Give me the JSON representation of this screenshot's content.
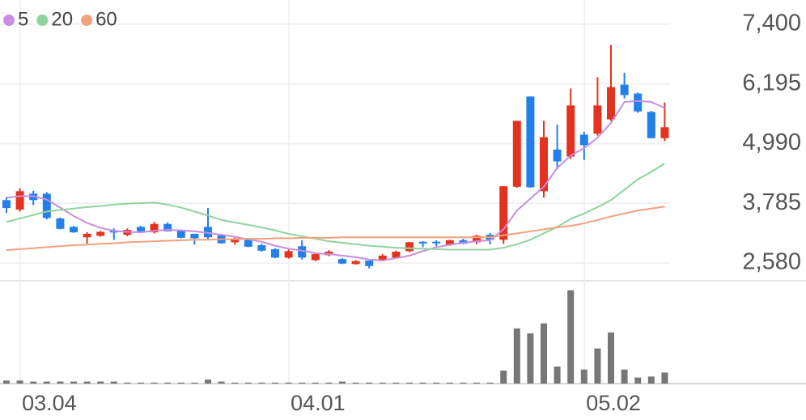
{
  "chart_data": [
    {
      "type": "candlestick",
      "categories": [
        null,
        "03.04",
        null,
        null,
        null,
        null,
        null,
        null,
        null,
        null,
        null,
        null,
        null,
        null,
        null,
        null,
        null,
        null,
        null,
        null,
        null,
        "04.01",
        null,
        null,
        null,
        null,
        null,
        null,
        null,
        null,
        null,
        null,
        null,
        null,
        null,
        null,
        null,
        null,
        null,
        null,
        null,
        null,
        null,
        "05.02",
        null,
        null,
        null,
        null,
        null,
        null
      ],
      "open": [
        3850,
        3660,
        3980,
        3980,
        3480,
        3310,
        3100,
        3130,
        3230,
        3150,
        3310,
        3200,
        3370,
        3230,
        3170,
        3310,
        3140,
        3000,
        3050,
        2940,
        2860,
        2690,
        2920,
        2640,
        2740,
        2660,
        2560,
        2630,
        2640,
        2690,
        2820,
        3010,
        3010,
        2940,
        3040,
        3000,
        3150,
        3050,
        4120,
        5940,
        4030,
        4870,
        4730,
        5170,
        5190,
        5480,
        6180,
        6000,
        5630,
        5100
      ],
      "high": [
        3910,
        4090,
        4040,
        4010,
        3500,
        3330,
        3200,
        3230,
        3280,
        3280,
        3330,
        3410,
        3400,
        3250,
        3170,
        3690,
        3170,
        3090,
        3080,
        2970,
        2880,
        2850,
        3040,
        2790,
        2840,
        2680,
        2640,
        2630,
        2760,
        2830,
        3010,
        3020,
        3040,
        3050,
        3070,
        3150,
        3190,
        4130,
        5450,
        5940,
        5450,
        5370,
        6100,
        5230,
        6330,
        6980,
        6420,
        6020,
        5650,
        5820
      ],
      "low": [
        3590,
        3620,
        3750,
        3460,
        3260,
        3190,
        2970,
        3110,
        3050,
        3120,
        3200,
        3180,
        3220,
        3080,
        2950,
        3040,
        2970,
        2950,
        2900,
        2810,
        2680,
        2670,
        2650,
        2620,
        2720,
        2560,
        2550,
        2470,
        2620,
        2680,
        2800,
        2900,
        2920,
        2930,
        2960,
        2960,
        2960,
        2970,
        4100,
        4100,
        3900,
        4470,
        4680,
        4660,
        5150,
        5450,
        5900,
        5610,
        5100,
        5040
      ],
      "close": [
        3690,
        4030,
        3850,
        3490,
        3270,
        3200,
        3170,
        3210,
        3200,
        3250,
        3220,
        3370,
        3220,
        3090,
        3080,
        3100,
        2980,
        3070,
        2910,
        2830,
        2690,
        2820,
        2690,
        2760,
        2810,
        2570,
        2620,
        2520,
        2730,
        2810,
        3000,
        2980,
        2980,
        3040,
        2970,
        3130,
        3050,
        4130,
        5450,
        4110,
        5120,
        4630,
        5760,
        4960,
        5760,
        6130,
        5970,
        5640,
        5100,
        5320
      ],
      "up_color": "#e5321f",
      "down_color": "#2280e8",
      "series": [
        {
          "name": "5",
          "color": "#c98de3",
          "values": [
            3900,
            3930,
            3930,
            3860,
            3700,
            3530,
            3390,
            3290,
            3230,
            3210,
            3200,
            3230,
            3250,
            3240,
            3220,
            3190,
            3150,
            3110,
            3060,
            3010,
            2930,
            2870,
            2830,
            2780,
            2760,
            2730,
            2700,
            2650,
            2630,
            2680,
            2730,
            2820,
            2900,
            2950,
            2990,
            3020,
            3040,
            3260,
            3640,
            3880,
            4120,
            4500,
            4750,
            4900,
            5110,
            5410,
            5830,
            5850,
            5830,
            5710
          ]
        },
        {
          "name": "20",
          "color": "#8ed49f",
          "values": [
            3410,
            3480,
            3550,
            3620,
            3650,
            3680,
            3710,
            3730,
            3760,
            3780,
            3790,
            3800,
            3760,
            3700,
            3620,
            3540,
            3450,
            3400,
            3350,
            3300,
            3240,
            3170,
            3120,
            3070,
            3020,
            2990,
            2960,
            2930,
            2910,
            2890,
            2880,
            2870,
            2860,
            2850,
            2850,
            2850,
            2850,
            2890,
            2960,
            3050,
            3180,
            3310,
            3470,
            3580,
            3710,
            3850,
            4060,
            4270,
            4420,
            4590
          ]
        },
        {
          "name": "60",
          "color": "#f3a07c",
          "values": [
            2840,
            2860,
            2880,
            2900,
            2920,
            2940,
            2950,
            2970,
            2980,
            3000,
            3010,
            3020,
            3030,
            3040,
            3050,
            3050,
            3060,
            3060,
            3070,
            3070,
            3080,
            3080,
            3090,
            3090,
            3090,
            3100,
            3100,
            3100,
            3100,
            3100,
            3100,
            3100,
            3100,
            3100,
            3100,
            3100,
            3100,
            3140,
            3180,
            3220,
            3260,
            3300,
            3330,
            3380,
            3450,
            3520,
            3580,
            3640,
            3680,
            3720
          ]
        }
      ],
      "ylim": [
        2222,
        7888
      ],
      "yticks": [
        {
          "value": 7400,
          "label": "7,400"
        },
        {
          "value": 6195,
          "label": "6,195"
        },
        {
          "value": 4990,
          "label": "4,990"
        },
        {
          "value": 3785,
          "label": "3,785"
        },
        {
          "value": 2580,
          "label": "2,580"
        }
      ],
      "grid": true
    },
    {
      "type": "bar",
      "color": "#777777",
      "ylim": [
        0,
        1000
      ],
      "values": [
        30,
        30,
        20,
        20,
        20,
        20,
        20,
        20,
        20,
        10,
        10,
        10,
        10,
        10,
        10,
        40,
        20,
        10,
        10,
        10,
        10,
        10,
        10,
        10,
        10,
        20,
        10,
        10,
        10,
        10,
        10,
        10,
        10,
        10,
        10,
        10,
        10,
        130,
        550,
        500,
        600,
        170,
        930,
        140,
        350,
        510,
        140,
        60,
        70,
        110
      ]
    }
  ]
}
